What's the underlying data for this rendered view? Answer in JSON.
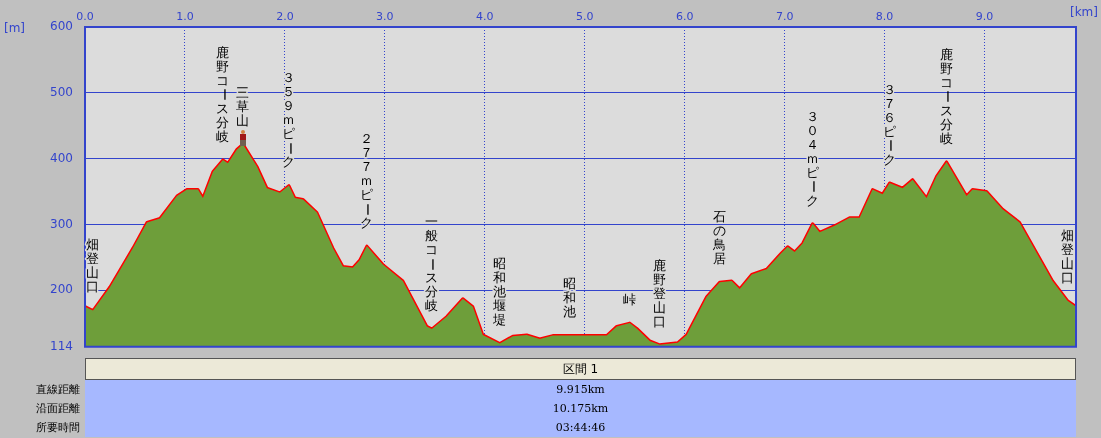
{
  "chart_data": {
    "type": "area",
    "xlabel": "[km]",
    "ylabel": "[m]",
    "xlim": [
      0,
      9.915
    ],
    "ylim": [
      114,
      600
    ],
    "xticks": [
      {
        "value": 0,
        "label": "0.0"
      },
      {
        "value": 1,
        "label": "1.0"
      },
      {
        "value": 2,
        "label": "2.0"
      },
      {
        "value": 3,
        "label": "3.0"
      },
      {
        "value": 4,
        "label": "4.0"
      },
      {
        "value": 5,
        "label": "5.0"
      },
      {
        "value": 6,
        "label": "6.0"
      },
      {
        "value": 7,
        "label": "7.0"
      },
      {
        "value": 8,
        "label": "8.0"
      },
      {
        "value": 9,
        "label": "9.0"
      }
    ],
    "yticks": [
      114,
      200,
      300,
      400,
      500,
      600
    ],
    "grid": true,
    "legend": false,
    "marker": "none",
    "x": [
      0,
      0.08,
      0.25,
      0.48,
      0.62,
      0.75,
      0.92,
      1.02,
      1.13,
      1.18,
      1.28,
      1.38,
      1.43,
      1.52,
      1.58,
      1.72,
      1.82,
      1.95,
      2.04,
      2.1,
      2.18,
      2.32,
      2.48,
      2.58,
      2.68,
      2.75,
      2.82,
      2.98,
      3.18,
      3.42,
      3.47,
      3.62,
      3.78,
      3.88,
      3.98,
      4.15,
      4.28,
      4.42,
      4.55,
      4.68,
      4.85,
      5.02,
      5.22,
      5.32,
      5.45,
      5.52,
      5.65,
      5.75,
      5.93,
      6.02,
      6.22,
      6.35,
      6.47,
      6.55,
      6.67,
      6.82,
      6.97,
      7.03,
      7.1,
      7.18,
      7.28,
      7.35,
      7.5,
      7.65,
      7.75,
      7.88,
      7.98,
      8.05,
      8.18,
      8.28,
      8.42,
      8.52,
      8.62,
      8.82,
      8.88,
      9.02,
      9.18,
      9.35,
      9.68,
      9.83,
      9.915
    ],
    "series": [
      {
        "color": "#6e9e3a",
        "values": [
          175,
          169,
          205,
          264,
          303,
          309,
          343,
          353,
          353,
          340,
          380,
          398,
          393,
          414,
          422,
          388,
          355,
          348,
          359,
          340,
          338,
          318,
          264,
          236,
          234,
          246,
          267,
          239,
          214,
          145,
          141,
          160,
          187,
          175,
          132,
          119,
          130,
          132,
          126,
          131,
          131,
          131,
          131,
          145,
          150,
          142,
          123,
          117,
          120,
          132,
          190,
          212,
          214,
          202,
          224,
          232,
          257,
          266,
          258,
          271,
          301,
          288,
          298,
          310,
          310,
          353,
          346,
          363,
          355,
          368,
          340,
          373,
          395,
          343,
          353,
          350,
          323,
          303,
          214,
          184,
          175
        ]
      },
      {
        "type": "line",
        "color": "#ff0000",
        "values": [
          175,
          169,
          205,
          264,
          303,
          309,
          343,
          353,
          353,
          340,
          380,
          398,
          393,
          414,
          422,
          388,
          355,
          348,
          359,
          340,
          338,
          318,
          264,
          236,
          234,
          246,
          267,
          239,
          214,
          145,
          141,
          160,
          187,
          175,
          132,
          119,
          130,
          132,
          126,
          131,
          131,
          131,
          131,
          145,
          150,
          142,
          123,
          117,
          120,
          132,
          190,
          212,
          214,
          202,
          224,
          232,
          257,
          266,
          258,
          271,
          301,
          288,
          298,
          310,
          310,
          353,
          346,
          363,
          355,
          368,
          340,
          373,
          395,
          343,
          353,
          350,
          323,
          303,
          214,
          184,
          175
        ]
      }
    ],
    "annotations": [
      {
        "text": "畑登山口",
        "x": 0.08,
        "y": 169
      },
      {
        "text": "鹿野コース分岐",
        "x": 1.38,
        "y": 398
      },
      {
        "text": "三草山",
        "x": 1.58,
        "y": 422
      },
      {
        "text": "３５９ｍピーク",
        "x": 2.04,
        "y": 359
      },
      {
        "text": "２７７ｍピーク",
        "x": 2.82,
        "y": 267
      },
      {
        "text": "一般コース分岐",
        "x": 3.47,
        "y": 141
      },
      {
        "text": "昭和池堰堤",
        "x": 4.15,
        "y": 119
      },
      {
        "text": "昭和池",
        "x": 4.85,
        "y": 131
      },
      {
        "text": "峠",
        "x": 5.45,
        "y": 150
      },
      {
        "text": "鹿野登山口",
        "x": 5.75,
        "y": 117
      },
      {
        "text": "石の鳥居",
        "x": 6.35,
        "y": 212
      },
      {
        "text": "３０４ｍピーク",
        "x": 7.28,
        "y": 301
      },
      {
        "text": "３７６ピーク",
        "x": 8.05,
        "y": 363
      },
      {
        "text": "鹿野コース分岐",
        "x": 8.62,
        "y": 395
      },
      {
        "text": "畑登山口",
        "x": 9.83,
        "y": 184
      },
      "区間 1",
      "直線距離",
      "9.915km",
      "沿面距離",
      "10.175km",
      "所要時間",
      "03:44:46"
    ]
  }
}
